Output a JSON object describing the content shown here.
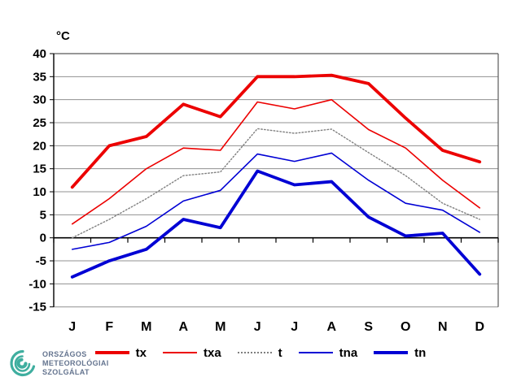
{
  "chart_data": {
    "type": "line",
    "title": "",
    "ylabel": "°C",
    "xlabel": "",
    "categories": [
      "J",
      "F",
      "M",
      "A",
      "M",
      "J",
      "J",
      "A",
      "S",
      "O",
      "N",
      "D"
    ],
    "ylim": [
      -15,
      40
    ],
    "ytick_step": 5,
    "yticks": [
      40,
      35,
      30,
      25,
      20,
      15,
      10,
      5,
      0,
      -5,
      -10,
      -15
    ],
    "grid": true,
    "legend_position": "bottom",
    "grid_color": "#909090",
    "axis_color": "#000000",
    "border_color": "#595959",
    "series": [
      {
        "name": "tx",
        "color": "#ec0000",
        "width": 3.8,
        "dotted": false,
        "values": [
          11,
          20,
          22,
          29,
          26.3,
          35,
          35,
          35.3,
          33.5,
          26,
          19,
          16.5
        ]
      },
      {
        "name": "txa",
        "color": "#ec0000",
        "width": 1.6,
        "dotted": false,
        "values": [
          3,
          8.5,
          15,
          19.5,
          19,
          29.5,
          28,
          30,
          23.5,
          19.5,
          12.5,
          6.5
        ]
      },
      {
        "name": "t",
        "color": "#7f7f7f",
        "width": 1.4,
        "dotted": true,
        "values": [
          0,
          4,
          8.5,
          13.5,
          14.3,
          23.7,
          22.7,
          23.6,
          18.5,
          13.5,
          7.5,
          4
        ]
      },
      {
        "name": "tna",
        "color": "#0000d4",
        "width": 1.6,
        "dotted": false,
        "values": [
          -2.5,
          -1,
          2.5,
          8,
          10.3,
          18.2,
          16.6,
          18.4,
          12.5,
          7.5,
          6,
          1.2
        ]
      },
      {
        "name": "tn",
        "color": "#0000d4",
        "width": 3.8,
        "dotted": false,
        "values": [
          -8.5,
          -5,
          -2.5,
          4,
          2.2,
          14.5,
          11.5,
          12.2,
          4.5,
          0.4,
          1,
          -7.9
        ]
      }
    ]
  },
  "logo": {
    "lines": [
      "ORSZÁGOS",
      "METEOROLÓGIAI",
      "SZOLGÁLAT"
    ],
    "text_color": "#64748f",
    "swirl_color": "#3fae9f"
  }
}
